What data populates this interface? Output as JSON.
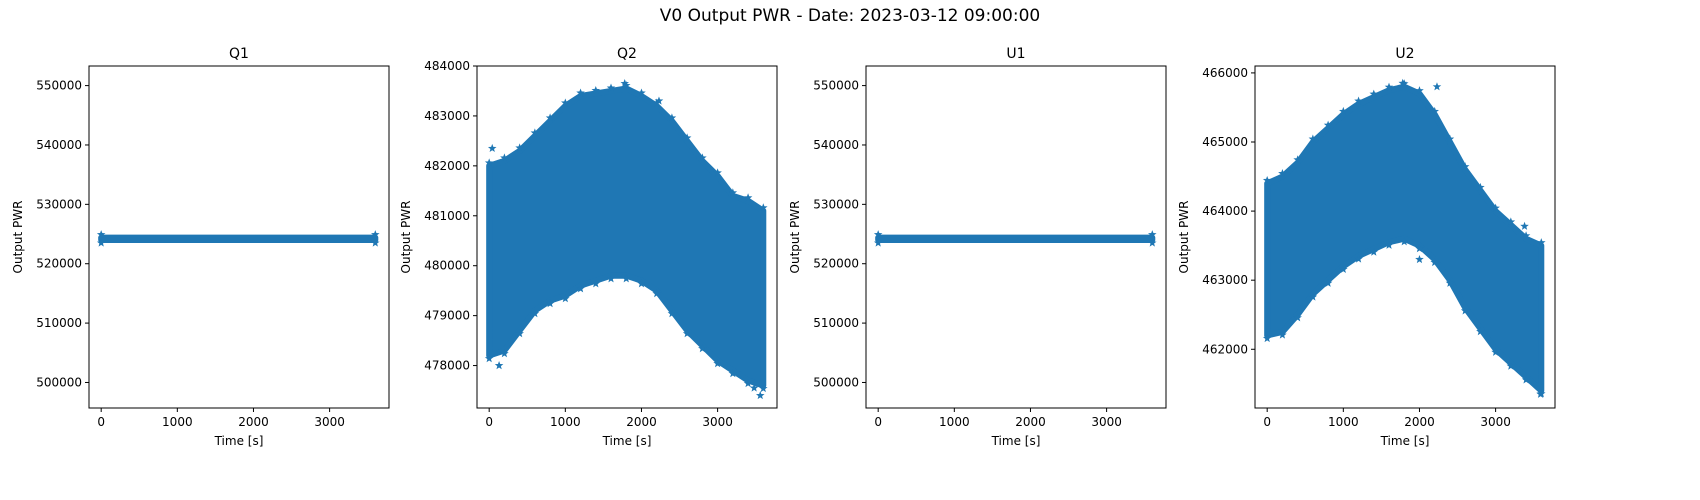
{
  "suptitle": "V0 Output PWR - Date: 2023-03-12 09:00:00",
  "colors": {
    "series": "#1f77b4",
    "axes": "#000000",
    "background": "#ffffff"
  },
  "chart_data": [
    {
      "type": "scatter",
      "title": "Q1",
      "xlabel": "Time [s]",
      "ylabel": "Output PWR",
      "xlim": [
        -160,
        3780
      ],
      "ylim": [
        495700,
        553300
      ],
      "xticks": [
        0,
        1000,
        2000,
        3000
      ],
      "yticks": [
        500000,
        510000,
        520000,
        530000,
        540000,
        550000
      ],
      "ytick_labels": [
        "500000",
        "510000",
        "520000",
        "530000",
        "540000",
        "550000"
      ],
      "marker": "star",
      "grid": false,
      "band": {
        "x": [
          0,
          3600
        ],
        "lower": [
          524000,
          524000
        ],
        "upper": [
          524400,
          524400
        ]
      }
    },
    {
      "type": "scatter",
      "title": "Q2",
      "xlabel": "Time [s]",
      "ylabel": "Output PWR",
      "xlim": [
        -160,
        3780
      ],
      "ylim": [
        477150,
        484000
      ],
      "xticks": [
        0,
        1000,
        2000,
        3000
      ],
      "yticks": [
        478000,
        479000,
        480000,
        481000,
        482000,
        483000,
        484000
      ],
      "ytick_labels": [
        "478000",
        "479000",
        "480000",
        "481000",
        "482000",
        "483000",
        "484000"
      ],
      "marker": "star",
      "grid": false,
      "band": {
        "x": [
          0,
          200,
          400,
          600,
          800,
          1000,
          1200,
          1400,
          1600,
          1800,
          2000,
          2200,
          2400,
          2600,
          2800,
          3000,
          3200,
          3400,
          3600
        ],
        "upper": [
          482000,
          482100,
          482300,
          482600,
          482900,
          483200,
          483400,
          483450,
          483500,
          483550,
          483400,
          483200,
          482900,
          482500,
          482100,
          481800,
          481400,
          481300,
          481100
        ],
        "lower": [
          478200,
          478300,
          478700,
          479100,
          479300,
          479400,
          479600,
          479700,
          479800,
          479800,
          479700,
          479500,
          479100,
          478700,
          478400,
          478100,
          477900,
          477700,
          477600
        ]
      },
      "outliers": [
        [
          40,
          482350
        ],
        [
          1780,
          483650
        ],
        [
          2230,
          483300
        ],
        [
          3560,
          477400
        ],
        [
          130,
          478000
        ],
        [
          3480,
          477550
        ]
      ]
    },
    {
      "type": "scatter",
      "title": "U1",
      "xlabel": "Time [s]",
      "ylabel": "Output PWR",
      "xlim": [
        -160,
        3780
      ],
      "ylim": [
        495700,
        553300
      ],
      "xticks": [
        0,
        1000,
        2000,
        3000
      ],
      "yticks": [
        500000,
        510000,
        520000,
        530000,
        540000,
        550000
      ],
      "ytick_labels": [
        "500000",
        "510000",
        "520000",
        "530000",
        "540000",
        "550000"
      ],
      "marker": "star",
      "grid": false,
      "band": {
        "x": [
          0,
          3600
        ],
        "lower": [
          524000,
          524000
        ],
        "upper": [
          524400,
          524400
        ]
      }
    },
    {
      "type": "scatter",
      "title": "U2",
      "xlabel": "Time [s]",
      "ylabel": "Output PWR",
      "xlim": [
        -160,
        3780
      ],
      "ylim": [
        461150,
        466100
      ],
      "xticks": [
        0,
        1000,
        2000,
        3000
      ],
      "yticks": [
        462000,
        463000,
        464000,
        465000,
        466000
      ],
      "ytick_labels": [
        "462000",
        "463000",
        "464000",
        "465000",
        "466000"
      ],
      "marker": "star",
      "grid": false,
      "band": {
        "x": [
          0,
          200,
          400,
          600,
          800,
          1000,
          1200,
          1400,
          1600,
          1800,
          2000,
          2200,
          2400,
          2600,
          2800,
          3000,
          3200,
          3400,
          3600
        ],
        "upper": [
          464400,
          464500,
          464700,
          465000,
          465200,
          465400,
          465550,
          465650,
          465750,
          465800,
          465700,
          465400,
          465000,
          464600,
          464300,
          464000,
          463800,
          463600,
          463500
        ],
        "lower": [
          462200,
          462250,
          462500,
          462800,
          463000,
          463200,
          463350,
          463450,
          463550,
          463600,
          463500,
          463300,
          463000,
          462600,
          462300,
          462000,
          461800,
          461600,
          461400
        ]
      },
      "outliers": [
        [
          1780,
          465850
        ],
        [
          2230,
          465800
        ],
        [
          3380,
          463780
        ],
        [
          3590,
          461350
        ],
        [
          2000,
          463300
        ]
      ]
    }
  ]
}
